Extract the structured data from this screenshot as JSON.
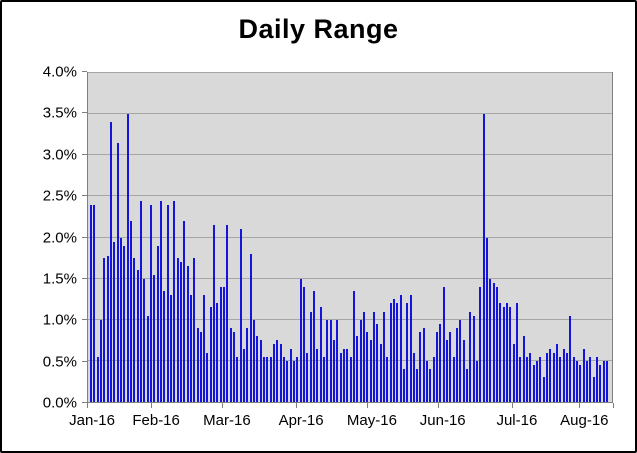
{
  "title": "Daily Range",
  "colors": {
    "bar": "#1414db",
    "plot_bg": "#d9d9d9",
    "gridline": "#a6a6a6",
    "plot_border": "#7f7f7f",
    "figure_border": "#000000",
    "background": "#ffffff"
  },
  "chart_data": {
    "type": "bar",
    "title": "Daily Range",
    "xlabel": "",
    "ylabel": "",
    "ylim": [
      0,
      4.0
    ],
    "ytick_step": 0.5,
    "ytick_labels": [
      "0.0%",
      "0.5%",
      "1.0%",
      "1.5%",
      "2.0%",
      "2.5%",
      "3.0%",
      "3.5%",
      "4.0%"
    ],
    "x_labels": [
      "Jan-16",
      "Feb-16",
      "Mar-16",
      "Apr-16",
      "May-16",
      "Jun-16",
      "Jul-16",
      "Aug-16"
    ],
    "month_start_index": [
      0,
      19,
      40,
      62,
      83,
      104,
      126,
      146
    ],
    "grid": true,
    "legend": false,
    "values": [
      2.4,
      2.4,
      0.55,
      1.0,
      1.75,
      1.78,
      3.4,
      1.95,
      3.15,
      2.0,
      1.9,
      3.5,
      2.2,
      1.75,
      1.6,
      2.45,
      1.5,
      1.05,
      2.4,
      1.55,
      1.9,
      2.45,
      1.35,
      2.4,
      1.3,
      2.45,
      1.75,
      1.7,
      2.2,
      1.65,
      1.3,
      1.75,
      0.9,
      0.85,
      1.3,
      0.6,
      1.15,
      2.15,
      1.2,
      1.4,
      1.4,
      2.15,
      0.9,
      0.85,
      0.55,
      2.1,
      0.65,
      0.9,
      1.8,
      1.0,
      0.8,
      0.75,
      0.55,
      0.55,
      0.55,
      0.7,
      0.75,
      0.7,
      0.55,
      0.5,
      0.65,
      0.5,
      0.55,
      1.5,
      1.4,
      0.6,
      1.1,
      1.35,
      0.65,
      1.15,
      0.55,
      1.0,
      1.0,
      0.75,
      1.0,
      0.6,
      0.65,
      0.65,
      0.55,
      1.35,
      0.8,
      1.0,
      1.1,
      0.85,
      0.75,
      1.1,
      0.95,
      0.7,
      1.1,
      0.55,
      1.2,
      1.25,
      1.2,
      1.3,
      0.4,
      1.2,
      1.3,
      0.6,
      0.4,
      0.85,
      0.9,
      0.5,
      0.4,
      0.55,
      0.85,
      0.95,
      1.4,
      0.75,
      0.85,
      0.55,
      0.9,
      1.0,
      0.75,
      0.4,
      1.1,
      1.05,
      0.5,
      1.4,
      3.5,
      2.0,
      1.5,
      1.45,
      1.4,
      1.2,
      1.15,
      1.2,
      1.15,
      0.7,
      1.2,
      0.55,
      0.8,
      0.55,
      0.6,
      0.45,
      0.5,
      0.55,
      0.3,
      0.6,
      0.65,
      0.6,
      0.7,
      0.55,
      0.65,
      0.6,
      1.05,
      0.55,
      0.5,
      0.45,
      0.65,
      0.5,
      0.55,
      0.3,
      0.55,
      0.45,
      0.5,
      0.5
    ]
  }
}
